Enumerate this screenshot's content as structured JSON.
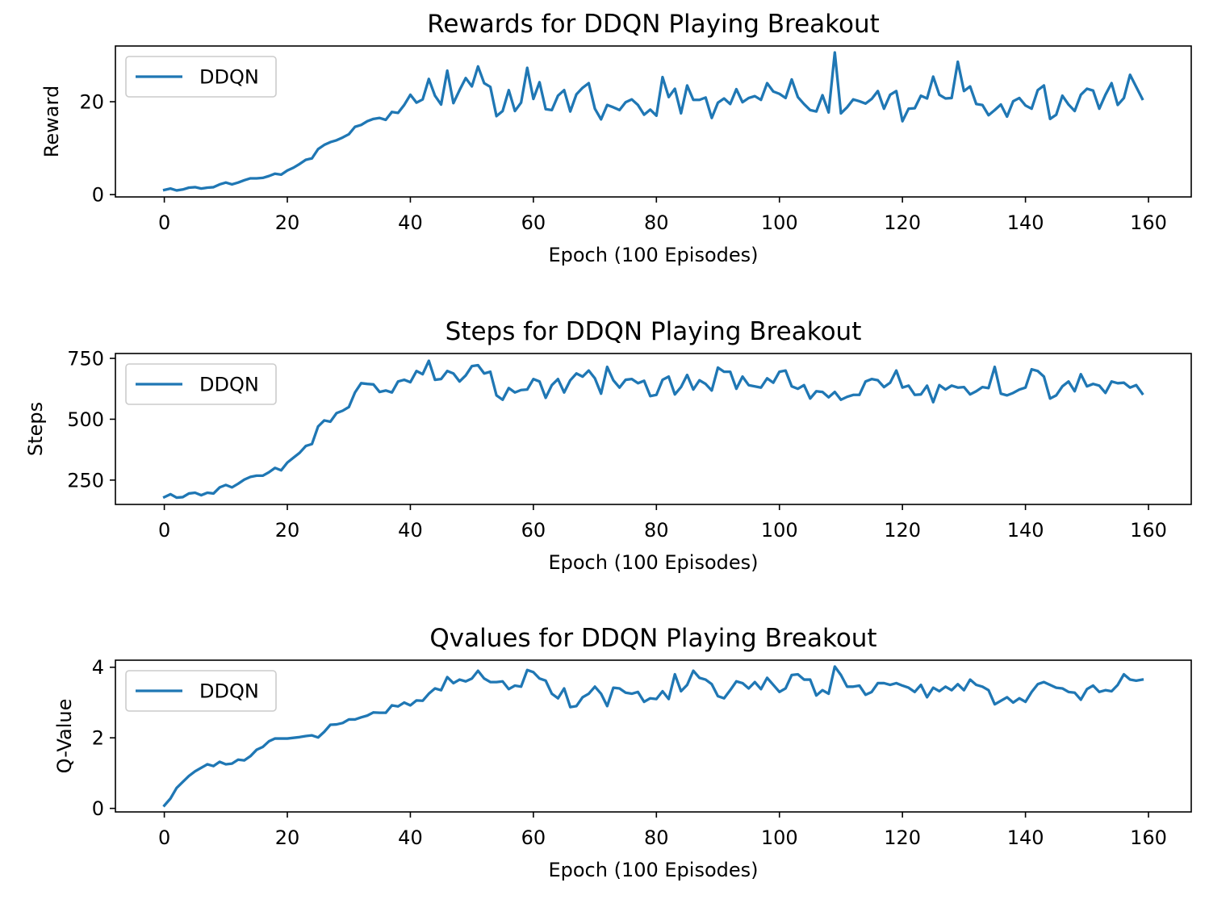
{
  "chart_data": [
    {
      "type": "line",
      "title": "Rewards for DDQN Playing Breakout",
      "xlabel": "Epoch (100 Episodes)",
      "ylabel": "Reward",
      "xlim": [
        -7.95,
        166.95
      ],
      "ylim": [
        -0.5,
        32.0
      ],
      "xticks": [
        0,
        20,
        40,
        60,
        80,
        100,
        120,
        140,
        160
      ],
      "yticks": [
        0,
        20
      ],
      "grid": false,
      "legend": "top-left",
      "series": [
        {
          "name": "DDQN",
          "color": "#1f77b4",
          "x_start": 0,
          "values": [
            1.0,
            1.3,
            0.9,
            1.1,
            1.5,
            1.6,
            1.3,
            1.5,
            1.6,
            2.2,
            2.6,
            2.2,
            2.6,
            3.1,
            3.5,
            3.5,
            3.6,
            4.0,
            4.5,
            4.3,
            5.2,
            5.8,
            6.6,
            7.5,
            7.8,
            9.8,
            10.7,
            11.3,
            11.7,
            12.3,
            13.0,
            14.6,
            15.0,
            15.8,
            16.3,
            16.5,
            16.1,
            17.8,
            17.6,
            19.3,
            21.5,
            19.8,
            20.5,
            24.9,
            21.3,
            19.4,
            26.7,
            19.7,
            22.5,
            25.1,
            23.3,
            27.6,
            24.0,
            23.2,
            16.9,
            18.0,
            22.5,
            18.0,
            19.8,
            27.3,
            20.6,
            24.2,
            18.4,
            18.2,
            21.3,
            22.5,
            17.9,
            21.6,
            23.0,
            24.0,
            18.5,
            16.2,
            19.3,
            18.8,
            18.2,
            19.9,
            20.5,
            19.3,
            17.2,
            18.3,
            17.0,
            25.3,
            21.0,
            22.8,
            17.5,
            23.5,
            20.4,
            20.4,
            20.9,
            16.5,
            19.8,
            20.7,
            19.5,
            22.7,
            19.9,
            20.8,
            21.2,
            20.4,
            24.0,
            22.2,
            21.7,
            20.8,
            24.8,
            21.0,
            19.5,
            18.2,
            17.9,
            21.4,
            17.7,
            30.6,
            17.5,
            18.8,
            20.5,
            20.1,
            19.6,
            20.6,
            22.3,
            18.5,
            21.5,
            22.3,
            15.8,
            18.5,
            18.6,
            21.3,
            20.7,
            25.4,
            21.5,
            20.7,
            20.8,
            28.6,
            22.3,
            23.3,
            19.5,
            19.3,
            17.1,
            18.2,
            19.4,
            16.8,
            20.1,
            20.8,
            19.2,
            18.5,
            22.5,
            23.5,
            16.3,
            17.2,
            21.3,
            19.4,
            18.0,
            21.5,
            22.8,
            22.4,
            18.5,
            21.5,
            24.0,
            19.3,
            20.8,
            25.8,
            23.2,
            20.6
          ]
        }
      ]
    },
    {
      "type": "line",
      "title": "Steps for DDQN Playing Breakout",
      "xlabel": "Epoch (100 Episodes)",
      "ylabel": "Steps",
      "xlim": [
        -7.95,
        166.95
      ],
      "ylim": [
        150,
        770
      ],
      "xticks": [
        0,
        20,
        40,
        60,
        80,
        100,
        120,
        140,
        160
      ],
      "yticks": [
        250,
        500,
        750
      ],
      "grid": false,
      "legend": "top-left",
      "series": [
        {
          "name": "DDQN",
          "color": "#1f77b4",
          "x_start": 0,
          "values": [
            180,
            192,
            178,
            180,
            195,
            198,
            188,
            198,
            195,
            220,
            230,
            220,
            235,
            252,
            263,
            268,
            268,
            282,
            300,
            290,
            322,
            342,
            362,
            390,
            398,
            470,
            495,
            490,
            525,
            535,
            550,
            610,
            648,
            645,
            643,
            612,
            618,
            610,
            655,
            662,
            652,
            698,
            685,
            740,
            662,
            665,
            698,
            688,
            655,
            680,
            718,
            722,
            688,
            695,
            598,
            580,
            628,
            610,
            620,
            622,
            665,
            655,
            588,
            640,
            665,
            610,
            660,
            688,
            675,
            700,
            668,
            605,
            715,
            660,
            630,
            662,
            665,
            648,
            658,
            595,
            600,
            662,
            675,
            602,
            632,
            682,
            622,
            660,
            645,
            618,
            712,
            695,
            695,
            625,
            675,
            640,
            635,
            630,
            668,
            650,
            695,
            700,
            635,
            625,
            640,
            585,
            615,
            612,
            590,
            612,
            580,
            592,
            600,
            600,
            655,
            665,
            660,
            632,
            650,
            700,
            630,
            638,
            600,
            602,
            638,
            570,
            640,
            622,
            638,
            630,
            632,
            602,
            615,
            632,
            628,
            715,
            605,
            598,
            608,
            622,
            630,
            705,
            698,
            675,
            585,
            598,
            635,
            655,
            615,
            685,
            635,
            645,
            638,
            608,
            655,
            648,
            650,
            630,
            640,
            605
          ]
        }
      ]
    },
    {
      "type": "line",
      "title": "Qvalues for DDQN Playing Breakout",
      "xlabel": "Epoch (100 Episodes)",
      "ylabel": "Q-Value",
      "xlim": [
        -7.95,
        166.95
      ],
      "ylim": [
        -0.1,
        4.2
      ],
      "xticks": [
        0,
        20,
        40,
        60,
        80,
        100,
        120,
        140,
        160
      ],
      "yticks": [
        0,
        2,
        4
      ],
      "grid": false,
      "legend": "top-left",
      "series": [
        {
          "name": "DDQN",
          "color": "#1f77b4",
          "x_start": 0,
          "values": [
            0.08,
            0.28,
            0.58,
            0.75,
            0.92,
            1.05,
            1.15,
            1.25,
            1.2,
            1.32,
            1.25,
            1.27,
            1.38,
            1.36,
            1.48,
            1.66,
            1.74,
            1.9,
            1.98,
            1.98,
            1.98,
            2.0,
            2.02,
            2.05,
            2.07,
            2.01,
            2.17,
            2.37,
            2.38,
            2.42,
            2.52,
            2.52,
            2.58,
            2.63,
            2.72,
            2.71,
            2.71,
            2.92,
            2.89,
            3.0,
            2.92,
            3.06,
            3.05,
            3.25,
            3.4,
            3.35,
            3.72,
            3.55,
            3.65,
            3.6,
            3.68,
            3.9,
            3.68,
            3.58,
            3.58,
            3.6,
            3.38,
            3.48,
            3.45,
            3.92,
            3.86,
            3.68,
            3.62,
            3.25,
            3.12,
            3.4,
            2.87,
            2.9,
            3.15,
            3.25,
            3.45,
            3.25,
            2.9,
            3.42,
            3.4,
            3.28,
            3.25,
            3.3,
            3.02,
            3.12,
            3.1,
            3.32,
            3.1,
            3.8,
            3.32,
            3.5,
            3.9,
            3.7,
            3.65,
            3.52,
            3.18,
            3.12,
            3.35,
            3.6,
            3.55,
            3.4,
            3.58,
            3.38,
            3.7,
            3.5,
            3.3,
            3.4,
            3.78,
            3.8,
            3.65,
            3.65,
            3.2,
            3.35,
            3.25,
            4.02,
            3.78,
            3.45,
            3.45,
            3.48,
            3.22,
            3.3,
            3.55,
            3.55,
            3.5,
            3.55,
            3.48,
            3.42,
            3.3,
            3.5,
            3.15,
            3.42,
            3.32,
            3.45,
            3.35,
            3.52,
            3.35,
            3.65,
            3.5,
            3.45,
            3.35,
            2.95,
            3.05,
            3.15,
            3.0,
            3.12,
            3.02,
            3.3,
            3.52,
            3.58,
            3.5,
            3.42,
            3.4,
            3.3,
            3.28,
            3.08,
            3.38,
            3.48,
            3.3,
            3.35,
            3.32,
            3.5,
            3.8,
            3.65,
            3.62,
            3.65
          ]
        }
      ]
    }
  ]
}
